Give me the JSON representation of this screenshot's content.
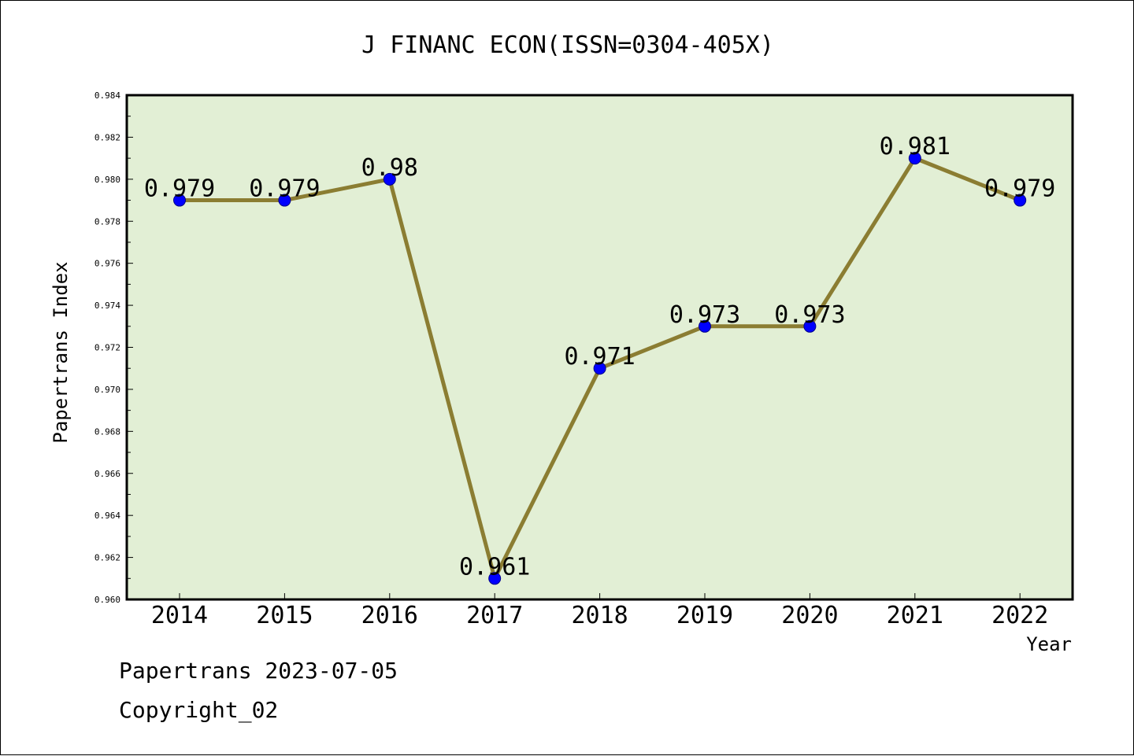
{
  "chart_data": {
    "type": "line",
    "title": "J FINANC ECON(ISSN=0304-405X)",
    "xlabel": "Year",
    "ylabel": "Papertrans Index",
    "categories": [
      "2014",
      "2015",
      "2016",
      "2017",
      "2018",
      "2019",
      "2020",
      "2021",
      "2022"
    ],
    "values": [
      0.979,
      0.979,
      0.98,
      0.961,
      0.971,
      0.973,
      0.973,
      0.981,
      0.979
    ],
    "data_labels": [
      "0.979",
      "0.979",
      "0.98",
      "0.961",
      "0.971",
      "0.973",
      "0.973",
      "0.981",
      "0.979"
    ],
    "ylim": [
      0.96,
      0.984
    ],
    "yticks": [
      "0.960",
      "0.962",
      "0.964",
      "0.966",
      "0.968",
      "0.970",
      "0.972",
      "0.974",
      "0.976",
      "0.978",
      "0.980",
      "0.982",
      "0.984"
    ],
    "grid": false,
    "legend": "none",
    "colors": {
      "plot_background": "#e2efd5",
      "line": "#8b7d32",
      "marker": "#0000ff"
    }
  },
  "footer": {
    "line1": "Papertrans 2023-07-05",
    "line2": "Copyright_02"
  }
}
